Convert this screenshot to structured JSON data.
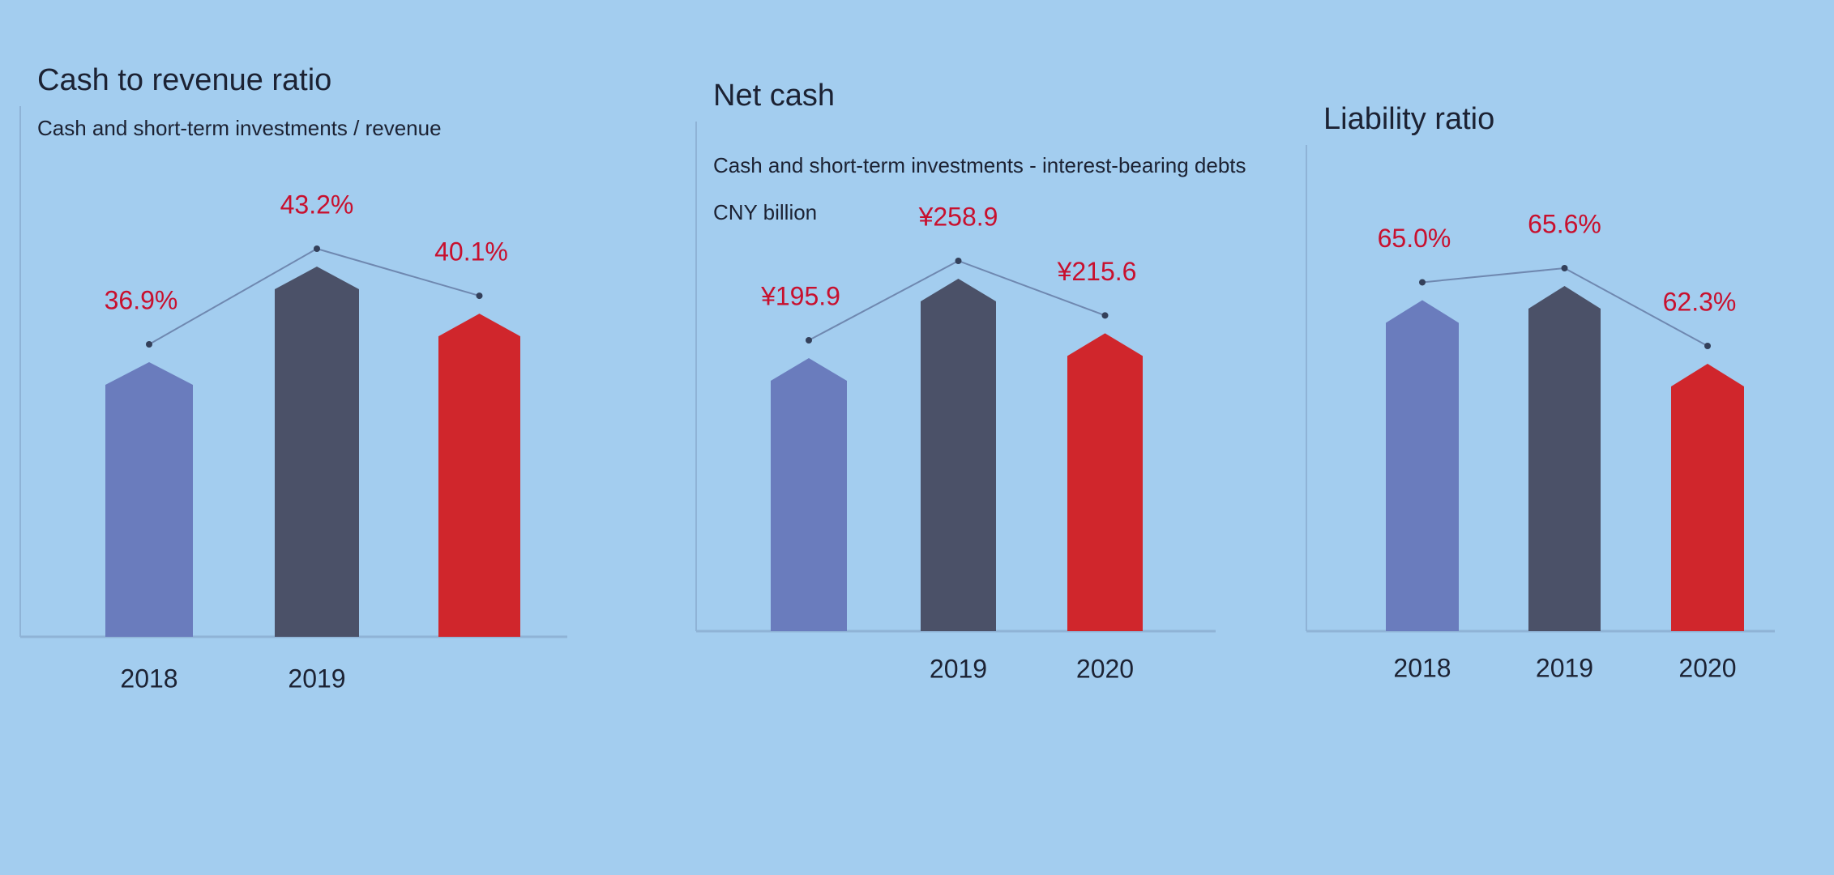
{
  "chart_data": [
    {
      "type": "bar",
      "title": "Cash to revenue ratio",
      "subtitle": "Cash and short-term investments / revenue",
      "categories": [
        "2018",
        "2019",
        null
      ],
      "values": [
        36.9,
        43.2,
        40.1
      ],
      "value_labels": [
        "36.9%",
        "43.2%",
        "40.1%"
      ],
      "colors": [
        "#6a7cbd",
        "#4b5168",
        "#d0262c"
      ],
      "line": true
    },
    {
      "type": "bar",
      "title": "Net cash",
      "subtitle": "Cash and short-term investments - interest-bearing debts",
      "note": "CNY billion",
      "categories": [
        null,
        "2019",
        "2020"
      ],
      "values": [
        195.9,
        258.9,
        215.6
      ],
      "value_labels": [
        "¥195.9",
        "¥258.9",
        "¥215.6"
      ],
      "colors": [
        "#6a7cbd",
        "#4b5168",
        "#d0262c"
      ],
      "line": true
    },
    {
      "type": "bar",
      "title": "Liability ratio",
      "categories": [
        "2018",
        "2019",
        "2020"
      ],
      "values": [
        65.0,
        65.6,
        62.3
      ],
      "value_labels": [
        "65.0%",
        "65.6%",
        "62.3%"
      ],
      "colors": [
        "#6a7cbd",
        "#4b5168",
        "#d0262c"
      ],
      "line": true
    }
  ]
}
